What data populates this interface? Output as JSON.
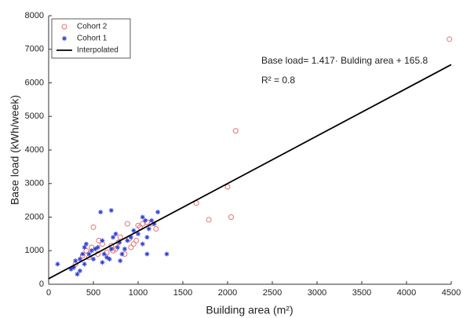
{
  "chart_data": {
    "type": "scatter",
    "xlabel": "Building area (m²)",
    "ylabel": "Base load (kWh/week)",
    "annotations": [
      "Base load= 1.417· Bulding area + 165.8",
      "R² = 0.8"
    ],
    "xlim": [
      0,
      4500
    ],
    "xticks": [
      0,
      500,
      1000,
      1500,
      2000,
      2500,
      3000,
      3500,
      4000,
      4500
    ],
    "ylim": [
      0,
      8000
    ],
    "yticks": [
      0,
      1000,
      2000,
      3000,
      4000,
      5000,
      6000,
      7000,
      8000
    ],
    "grid": false,
    "legend": "upper left",
    "series": [
      {
        "name": "Cohort 2",
        "color": "#e8706f",
        "marker": "circle",
        "x": [
          4480,
          2090,
          2000,
          2040,
          1650,
          1790,
          1200,
          1100,
          1050,
          1000,
          980,
          950,
          900,
          880,
          850,
          800,
          780,
          750,
          720,
          700,
          650,
          600,
          550,
          500,
          480,
          450,
          420,
          380,
          300,
          1150,
          1020,
          920,
          560
        ],
        "values": [
          7300,
          4570,
          2900,
          2000,
          2420,
          1920,
          1650,
          1850,
          1800,
          1750,
          1300,
          1200,
          1350,
          1800,
          900,
          1400,
          1250,
          1050,
          1000,
          1150,
          950,
          1200,
          900,
          1700,
          1100,
          800,
          1000,
          850,
          600,
          1800,
          1700,
          1100,
          1300
        ]
      },
      {
        "name": "Cohort 1",
        "color": "#2b3fd6",
        "marker": "asterisk",
        "x": [
          100,
          280,
          300,
          320,
          350,
          380,
          400,
          420,
          450,
          480,
          500,
          520,
          550,
          580,
          600,
          620,
          650,
          680,
          700,
          720,
          750,
          770,
          790,
          820,
          850,
          880,
          920,
          950,
          1000,
          1050,
          1080,
          1100,
          1120,
          1150,
          1180,
          1220,
          1100,
          1320,
          800,
          600,
          350,
          250,
          400,
          1050,
          700
        ],
        "values": [
          600,
          500,
          700,
          300,
          750,
          900,
          600,
          1200,
          900,
          1000,
          750,
          1050,
          1100,
          2150,
          1300,
          900,
          800,
          750,
          2200,
          1400,
          1500,
          1100,
          1250,
          900,
          1050,
          1300,
          1400,
          1600,
          1500,
          1200,
          1900,
          1400,
          1650,
          1900,
          1800,
          2150,
          900,
          900,
          700,
          650,
          400,
          450,
          1100,
          2000,
          1050
        ]
      },
      {
        "name": "Interpolated",
        "color": "#000000",
        "marker": "line",
        "x": [
          0,
          4500
        ],
        "values": [
          165.8,
          6542.3
        ]
      }
    ]
  }
}
